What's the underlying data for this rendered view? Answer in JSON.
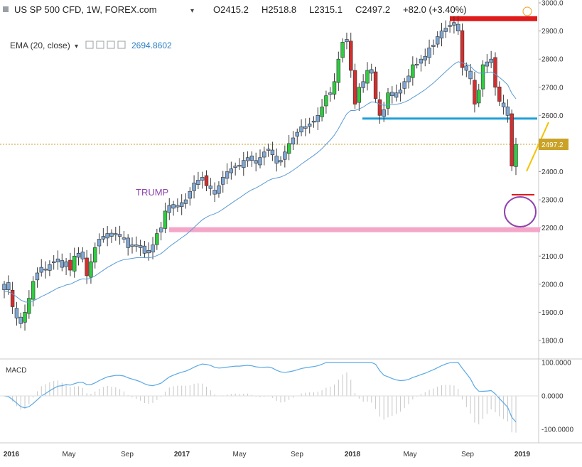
{
  "header": {
    "symbol": "US SP 500 CFD, 1W, FOREX.com",
    "chevron": "chevron-down-icon",
    "open_label": "O2415.2",
    "high_label": "H2518.8",
    "low_label": "L2315.1",
    "close_label": "C2497.2",
    "change_label": "+82.0 (+3.40%)"
  },
  "indicator": {
    "label": "EMA (20, close)",
    "value": "2694.8602",
    "icons": [
      "eye-icon",
      "settings-icon",
      "source-icon",
      "close-icon"
    ]
  },
  "price_badge": "2497.2",
  "annotation_text": "TRUMP",
  "macd": {
    "label": "MACD",
    "axis_labels": [
      "100.0000",
      "0.0000",
      "-100.0000"
    ]
  },
  "colors": {
    "up": "#2ecc40",
    "down": "#d32f2f",
    "neutral": "#7fa7d4",
    "ema": "#5b9bd5",
    "support_blue": "#1e9fd8",
    "support_pink": "#f4a6c8",
    "resistance_red": "#e01919",
    "price_line": "#c9a227",
    "circle": "#8e44ad",
    "trend_yellow": "#f2c200"
  },
  "chart_data": {
    "type": "candlestick",
    "title": "US SP 500 CFD, 1W, FOREX.com",
    "y_axis": {
      "min": 1750,
      "max": 3000,
      "ticks": [
        "3000.0",
        "2900.0",
        "2800.0",
        "2700.0",
        "2600.0",
        "2500.0",
        "2400.0",
        "2300.0",
        "2200.0",
        "2100.0",
        "2000.0",
        "1900.0",
        "1800.0"
      ]
    },
    "x_axis": {
      "ticks": [
        "2016",
        "May",
        "Sep",
        "2017",
        "May",
        "Sep",
        "2018",
        "May",
        "Sep",
        "2019"
      ]
    },
    "ohlc_close": [
      2000,
      1980,
      1920,
      1880,
      1860,
      1900,
      1950,
      2010,
      2040,
      2060,
      2050,
      2070,
      2080,
      2090,
      2060,
      2080,
      2050,
      2100,
      2110,
      2090,
      2030,
      2080,
      2130,
      2160,
      2170,
      2180,
      2170,
      2180,
      2170,
      2160,
      2130,
      2140,
      2140,
      2130,
      2110,
      2120,
      2140,
      2180,
      2200,
      2260,
      2280,
      2270,
      2280,
      2290,
      2300,
      2330,
      2360,
      2370,
      2380,
      2350,
      2340,
      2320,
      2350,
      2380,
      2400,
      2410,
      2420,
      2420,
      2440,
      2450,
      2440,
      2430,
      2450,
      2470,
      2480,
      2460,
      2430,
      2440,
      2470,
      2500,
      2520,
      2540,
      2560,
      2560,
      2570,
      2580,
      2600,
      2630,
      2670,
      2680,
      2720,
      2800,
      2860,
      2870,
      2760,
      2640,
      2700,
      2720,
      2760,
      2750,
      2660,
      2600,
      2620,
      2680,
      2670,
      2680,
      2690,
      2720,
      2740,
      2780,
      2780,
      2800,
      2810,
      2840,
      2850,
      2880,
      2900,
      2910,
      2920,
      2930,
      2900,
      2770,
      2760,
      2730,
      2640,
      2690,
      2780,
      2790,
      2800,
      2700,
      2650,
      2630,
      2600,
      2420,
      2497
    ],
    "ema_20": 2694.8602,
    "lines": [
      {
        "name": "resistance",
        "value": 2945
      },
      {
        "name": "support",
        "value": 2590
      },
      {
        "name": "support",
        "value": 2195
      },
      {
        "name": "last_low",
        "value": 2318
      }
    ],
    "last_price": 2497.2,
    "macd_range": [
      -130,
      100
    ]
  }
}
